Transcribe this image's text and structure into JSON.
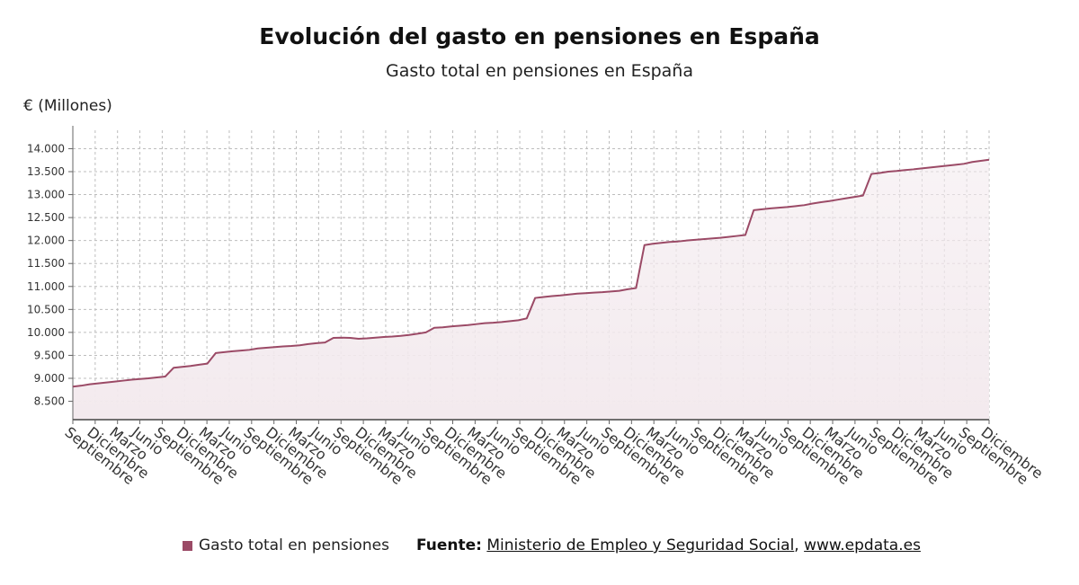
{
  "header": {
    "title": "Evolución del gasto en pensiones en España",
    "subtitle": "Gasto total en pensiones en España"
  },
  "legend": {
    "label": "Gasto total en pensiones"
  },
  "source": {
    "label": "Fuente:",
    "org": "Ministerio de Empleo y Seguridad Social",
    "separator": ",",
    "site": "www.epdata.es"
  },
  "colors": {
    "series": "#9b4a66",
    "fill": "#f3eaee",
    "grid": "#bdbdbd",
    "axis": "#666666"
  },
  "chart_data": {
    "type": "area",
    "ylabel": "€ (Millones)",
    "ylim": [
      8100,
      14400
    ],
    "yticks": [
      8500,
      9000,
      9500,
      10000,
      10500,
      11000,
      11500,
      12000,
      12500,
      13000,
      13500,
      14000
    ],
    "ytick_labels": [
      "8.500",
      "9.000",
      "9.500",
      "10.000",
      "10.500",
      "11.000",
      "11.500",
      "12.000",
      "12.500",
      "13.000",
      "13.500",
      "14.000"
    ],
    "x_tick_labels": [
      "Septiembre",
      "Diciembre",
      "Marzo",
      "Junio",
      "Septiembre",
      "Diciembre",
      "Marzo",
      "Junio",
      "Septiembre",
      "Diciembre",
      "Marzo",
      "Junio",
      "Septiembre",
      "Diciembre",
      "Marzo",
      "Junio",
      "Septiembre",
      "Diciembre",
      "Marzo",
      "Junio",
      "Septiembre",
      "Diciembre",
      "Marzo",
      "Junio",
      "Septiembre",
      "Diciembre",
      "Marzo",
      "Junio",
      "Septiembre",
      "Diciembre",
      "Marzo",
      "Junio",
      "Septiembre",
      "Diciembre",
      "Marzo",
      "Junio",
      "Septiembre",
      "Diciembre",
      "Marzo",
      "Junio",
      "Septiembre",
      "Diciembre"
    ],
    "grid": true,
    "legend_position": "bottom-left",
    "series": [
      {
        "name": "Gasto total en pensiones",
        "values": [
          8820,
          8840,
          8870,
          8890,
          8910,
          8930,
          8950,
          8970,
          8985,
          9000,
          9020,
          9040,
          9230,
          9250,
          9270,
          9295,
          9320,
          9550,
          9570,
          9590,
          9605,
          9620,
          9650,
          9665,
          9680,
          9695,
          9705,
          9720,
          9745,
          9765,
          9780,
          9880,
          9885,
          9880,
          9860,
          9870,
          9885,
          9900,
          9910,
          9925,
          9945,
          9970,
          10000,
          10100,
          10110,
          10130,
          10145,
          10160,
          10180,
          10200,
          10210,
          10225,
          10245,
          10265,
          10305,
          10750,
          10770,
          10790,
          10805,
          10825,
          10845,
          10855,
          10865,
          10875,
          10890,
          10905,
          10940,
          10965,
          11900,
          11930,
          11950,
          11970,
          11980,
          12000,
          12015,
          12030,
          12045,
          12060,
          12080,
          12100,
          12120,
          12660,
          12680,
          12700,
          12715,
          12730,
          12750,
          12770,
          12805,
          12835,
          12860,
          12890,
          12920,
          12950,
          12980,
          13450,
          13470,
          13500,
          13515,
          13535,
          13550,
          13570,
          13590,
          13610,
          13630,
          13650,
          13670,
          13710,
          13735,
          13760
        ]
      }
    ]
  }
}
